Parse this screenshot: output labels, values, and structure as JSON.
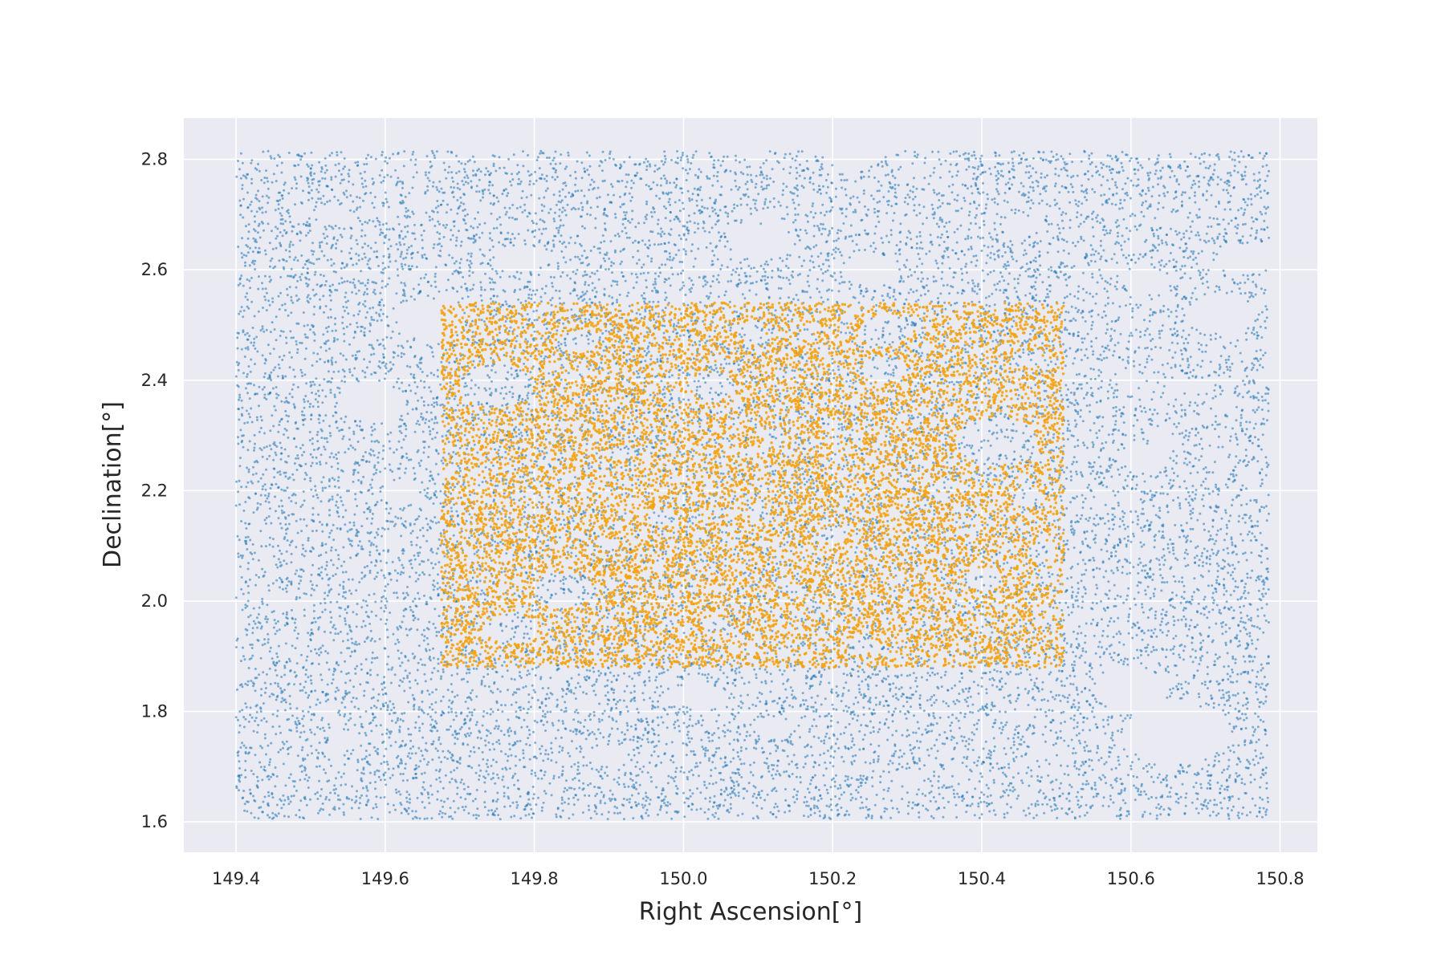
{
  "chart_data": {
    "type": "scatter",
    "title": "",
    "xlabel": "Right Ascension[°]",
    "ylabel": "Declination[°]",
    "xlim": [
      149.33,
      150.85
    ],
    "ylim": [
      1.545,
      2.875
    ],
    "xticks": [
      149.4,
      149.6,
      149.8,
      150.0,
      150.2,
      150.4,
      150.6,
      150.8
    ],
    "yticks": [
      1.6,
      1.8,
      2.0,
      2.2,
      2.4,
      2.6,
      2.8
    ],
    "xtick_labels": [
      "149.4",
      "149.6",
      "149.8",
      "150.0",
      "150.2",
      "150.4",
      "150.6",
      "150.8"
    ],
    "ytick_labels": [
      "1.6",
      "1.8",
      "2.0",
      "2.2",
      "2.4",
      "2.6",
      "2.8"
    ],
    "grid": true,
    "background": "#eaeaf2",
    "series": [
      {
        "color": "#1f77b4",
        "extent": {
          "ra": [
            149.4,
            150.785
          ],
          "dec": [
            1.605,
            2.815
          ]
        },
        "masked_regions": [
          {
            "ra": 149.53,
            "dec": 2.7,
            "r": 0.025
          },
          {
            "ra": 149.65,
            "dec": 2.72,
            "r": 0.02
          },
          {
            "ra": 149.78,
            "dec": 2.62,
            "r": 0.03
          },
          {
            "ra": 150.1,
            "dec": 2.65,
            "r": 0.04
          },
          {
            "ra": 150.25,
            "dec": 2.6,
            "r": 0.035
          },
          {
            "ra": 150.62,
            "dec": 2.58,
            "r": 0.03
          },
          {
            "ra": 150.75,
            "dec": 2.62,
            "r": 0.035
          },
          {
            "ra": 150.72,
            "dec": 2.52,
            "r": 0.045
          },
          {
            "ra": 149.66,
            "dec": 2.51,
            "r": 0.045
          },
          {
            "ra": 149.58,
            "dec": 2.36,
            "r": 0.045
          },
          {
            "ra": 149.62,
            "dec": 2.2,
            "r": 0.025
          },
          {
            "ra": 149.46,
            "dec": 2.0,
            "r": 0.02
          },
          {
            "ra": 150.6,
            "dec": 2.4,
            "r": 0.02
          },
          {
            "ra": 150.62,
            "dec": 2.26,
            "r": 0.03
          },
          {
            "ra": 150.66,
            "dec": 1.76,
            "r": 0.07
          },
          {
            "ra": 150.6,
            "dec": 1.84,
            "r": 0.05
          },
          {
            "ra": 150.02,
            "dec": 1.83,
            "r": 0.03
          },
          {
            "ra": 149.9,
            "dec": 1.72,
            "r": 0.025
          },
          {
            "ra": 150.12,
            "dec": 1.77,
            "r": 0.025
          },
          {
            "ra": 149.55,
            "dec": 1.75,
            "r": 0.02
          },
          {
            "ra": 150.3,
            "dec": 1.68,
            "r": 0.02
          },
          {
            "ra": 150.45,
            "dec": 2.68,
            "r": 0.025
          },
          {
            "ra": 150.23,
            "dec": 2.82,
            "r": 0.045
          }
        ]
      },
      {
        "color": "#f5a30f",
        "extent": {
          "ra": [
            149.675,
            150.51
          ],
          "dec": [
            1.88,
            2.54
          ]
        },
        "masked_regions": [
          {
            "ra": 149.75,
            "dec": 2.39,
            "r": 0.05
          },
          {
            "ra": 150.42,
            "dec": 2.29,
            "r": 0.055
          },
          {
            "ra": 149.84,
            "dec": 2.02,
            "r": 0.04
          },
          {
            "ra": 150.04,
            "dec": 2.39,
            "r": 0.03
          },
          {
            "ra": 150.27,
            "dec": 2.49,
            "r": 0.035
          },
          {
            "ra": 150.27,
            "dec": 2.42,
            "r": 0.03
          },
          {
            "ra": 149.77,
            "dec": 1.95,
            "r": 0.035
          },
          {
            "ra": 149.86,
            "dec": 2.47,
            "r": 0.025
          },
          {
            "ra": 150.46,
            "dec": 2.19,
            "r": 0.02
          },
          {
            "ra": 150.48,
            "dec": 2.09,
            "r": 0.02
          },
          {
            "ra": 150.4,
            "dec": 2.04,
            "r": 0.025
          },
          {
            "ra": 150.24,
            "dec": 1.92,
            "r": 0.02
          },
          {
            "ra": 149.97,
            "dec": 2.15,
            "r": 0.02
          },
          {
            "ra": 150.2,
            "dec": 2.12,
            "r": 0.02
          },
          {
            "ra": 150.09,
            "dec": 2.49,
            "r": 0.02
          },
          {
            "ra": 149.92,
            "dec": 2.27,
            "r": 0.015
          },
          {
            "ra": 150.12,
            "dec": 2.3,
            "r": 0.015
          },
          {
            "ra": 150.35,
            "dec": 2.21,
            "r": 0.015
          },
          {
            "ra": 149.9,
            "dec": 2.1,
            "r": 0.015
          },
          {
            "ra": 150.04,
            "dec": 1.96,
            "r": 0.015
          },
          {
            "ra": 150.15,
            "dec": 2.02,
            "r": 0.015
          },
          {
            "ra": 150.46,
            "dec": 2.44,
            "r": 0.02
          },
          {
            "ra": 150.1,
            "dec": 2.16,
            "r": 0.015
          }
        ]
      }
    ]
  }
}
